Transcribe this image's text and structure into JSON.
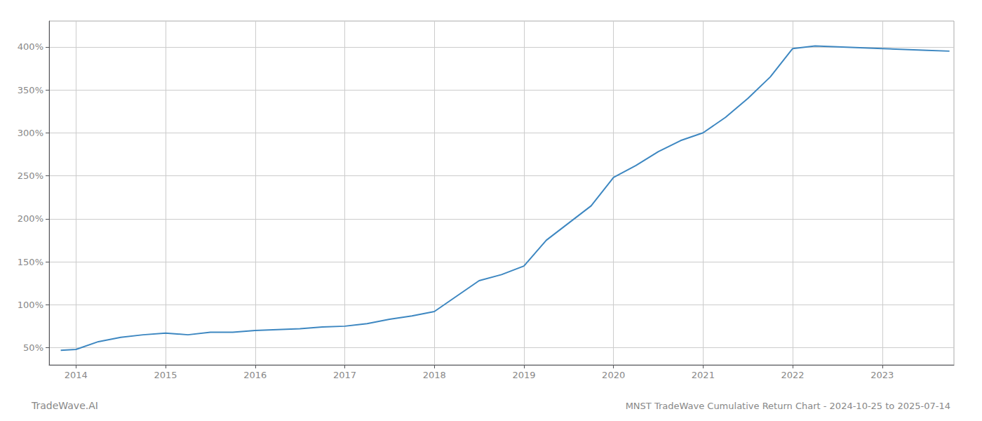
{
  "chart_data": {
    "type": "line",
    "title": "MNST TradeWave Cumulative Return Chart - 2024-10-25 to 2025-07-14",
    "annotations": [
      "TradeWave.AI"
    ],
    "color": "#3d87c1",
    "grid": true,
    "x": [
      2013.83,
      2014.0,
      2014.25,
      2014.5,
      2014.75,
      2015.0,
      2015.25,
      2015.5,
      2015.75,
      2016.0,
      2016.25,
      2016.5,
      2016.75,
      2017.0,
      2017.25,
      2017.5,
      2017.75,
      2018.0,
      2018.25,
      2018.5,
      2018.75,
      2019.0,
      2019.25,
      2019.5,
      2019.75,
      2020.0,
      2020.25,
      2020.5,
      2020.75,
      2021.0,
      2021.25,
      2021.5,
      2021.75,
      2022.0,
      2022.25,
      2022.5,
      2022.75,
      2023.0,
      2023.25,
      2023.5,
      2023.75
    ],
    "values": [
      47,
      48,
      57,
      62,
      65,
      67,
      65,
      68,
      68,
      70,
      71,
      72,
      74,
      75,
      78,
      83,
      87,
      92,
      110,
      128,
      135,
      145,
      175,
      195,
      215,
      248,
      262,
      278,
      291,
      300,
      318,
      340,
      365,
      398,
      401,
      400,
      399,
      398,
      397,
      396,
      395
    ],
    "xlim": [
      2013.7,
      2023.8
    ],
    "xticks": [
      2014,
      2015,
      2016,
      2017,
      2018,
      2019,
      2020,
      2021,
      2022,
      2023
    ],
    "ylim": [
      30,
      430
    ],
    "yticks": [
      {
        "value": 50,
        "label": "50%"
      },
      {
        "value": 100,
        "label": "100%"
      },
      {
        "value": 150,
        "label": "150%"
      },
      {
        "value": 200,
        "label": "200%"
      },
      {
        "value": 250,
        "label": "250%"
      },
      {
        "value": 300,
        "label": "300%"
      },
      {
        "value": 350,
        "label": "350%"
      },
      {
        "value": 400,
        "label": "400%"
      }
    ]
  }
}
